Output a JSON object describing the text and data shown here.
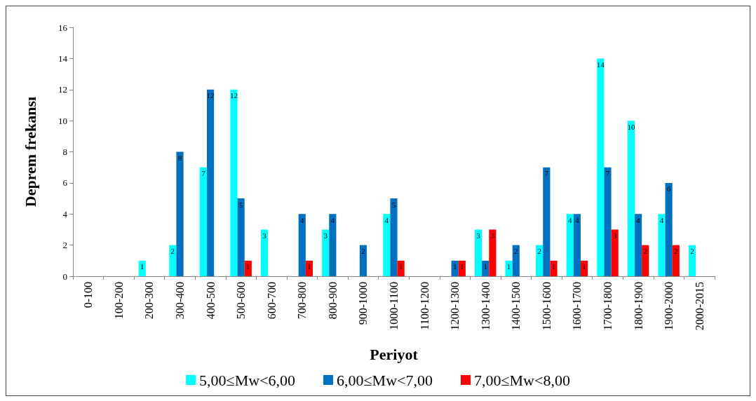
{
  "chart_data": {
    "type": "bar",
    "xlabel": "Periyot",
    "ylabel": "Deprem frekansı",
    "categories": [
      "0-100",
      "100-200",
      "200-300",
      "300-400",
      "400-500",
      "500-600",
      "600-700",
      "700-800",
      "800-900",
      "900-1000",
      "1000-1100",
      "1100-1200",
      "1200-1300",
      "1300-1400",
      "1400-1500",
      "1500-1600",
      "1600-1700",
      "1700-1800",
      "1800-1900",
      "1900-2000",
      "2000-2015"
    ],
    "series": [
      {
        "name": "5,00≤Mw<6,00",
        "color": "#00ffff",
        "values": [
          null,
          null,
          1,
          2,
          7,
          12,
          3,
          null,
          3,
          null,
          4,
          null,
          null,
          3,
          1,
          2,
          4,
          14,
          10,
          4,
          2
        ]
      },
      {
        "name": "6,00≤Mw<7,00",
        "color": "#0070c0",
        "values": [
          null,
          null,
          null,
          8,
          12,
          5,
          null,
          4,
          4,
          2,
          5,
          null,
          1,
          1,
          2,
          7,
          4,
          7,
          4,
          6,
          null
        ]
      },
      {
        "name": "7,00≤Mw<8,00",
        "color": "#ff0000",
        "values": [
          null,
          null,
          null,
          null,
          null,
          1,
          null,
          1,
          null,
          null,
          1,
          null,
          1,
          3,
          null,
          1,
          1,
          3,
          2,
          2,
          null
        ]
      }
    ],
    "ylim": [
      0,
      16
    ],
    "yticks": [
      0,
      2,
      4,
      6,
      8,
      10,
      12,
      14,
      16
    ],
    "grid": false,
    "legend": "bottom",
    "data_labels": true
  }
}
